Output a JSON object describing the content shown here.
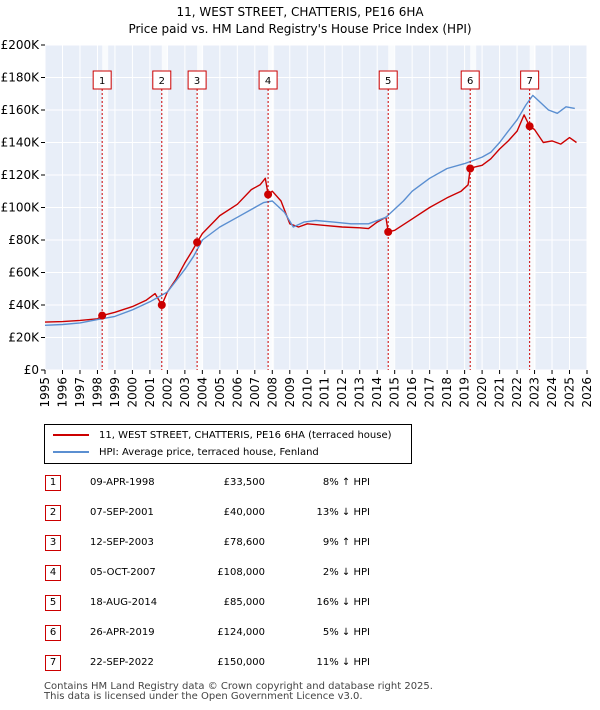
{
  "chart_data": {
    "type": "line",
    "title": "11, WEST STREET, CHATTERIS, PE16 6HA",
    "subtitle": "Price paid vs. HM Land Registry's House Price Index (HPI)",
    "xlim": [
      1995,
      2026
    ],
    "ylim": [
      0,
      200000
    ],
    "x_ticks": [
      "1995",
      "1996",
      "1997",
      "1998",
      "1999",
      "2000",
      "2001",
      "2002",
      "2003",
      "2004",
      "2005",
      "2006",
      "2007",
      "2008",
      "2009",
      "2010",
      "2011",
      "2012",
      "2013",
      "2014",
      "2015",
      "2016",
      "2017",
      "2018",
      "2019",
      "2020",
      "2021",
      "2022",
      "2023",
      "2024",
      "2025",
      "2026"
    ],
    "y_ticks": [
      {
        "value": 0,
        "label": "£0"
      },
      {
        "value": 20000,
        "label": "£20K"
      },
      {
        "value": 40000,
        "label": "£40K"
      },
      {
        "value": 60000,
        "label": "£60K"
      },
      {
        "value": 80000,
        "label": "£80K"
      },
      {
        "value": 100000,
        "label": "£100K"
      },
      {
        "value": 120000,
        "label": "£120K"
      },
      {
        "value": 140000,
        "label": "£140K"
      },
      {
        "value": 160000,
        "label": "£160K"
      },
      {
        "value": 180000,
        "label": "£180K"
      },
      {
        "value": 200000,
        "label": "£200K"
      }
    ],
    "grid": true,
    "series": [
      {
        "name": "11, WEST STREET, CHATTERIS, PE16 6HA (terraced house)",
        "color": "#cc0000",
        "points": [
          [
            1995.0,
            29500
          ],
          [
            1996.0,
            29800
          ],
          [
            1997.0,
            30500
          ],
          [
            1998.0,
            31500
          ],
          [
            1998.27,
            33500
          ],
          [
            1999.0,
            35500
          ],
          [
            2000.0,
            39000
          ],
          [
            2000.8,
            43000
          ],
          [
            2001.3,
            47000
          ],
          [
            2001.68,
            40000
          ],
          [
            2002.0,
            48000
          ],
          [
            2002.5,
            56000
          ],
          [
            2003.0,
            66000
          ],
          [
            2003.4,
            73000
          ],
          [
            2003.7,
            78600
          ],
          [
            2004.0,
            84000
          ],
          [
            2005.0,
            95000
          ],
          [
            2006.0,
            102000
          ],
          [
            2006.8,
            111000
          ],
          [
            2007.3,
            114000
          ],
          [
            2007.6,
            118000
          ],
          [
            2007.76,
            108000
          ],
          [
            2008.0,
            110000
          ],
          [
            2008.5,
            104000
          ],
          [
            2009.0,
            90000
          ],
          [
            2009.5,
            88000
          ],
          [
            2010.0,
            90000
          ],
          [
            2011.0,
            89000
          ],
          [
            2012.0,
            88000
          ],
          [
            2013.0,
            87500
          ],
          [
            2013.5,
            87000
          ],
          [
            2014.0,
            91000
          ],
          [
            2014.5,
            94000
          ],
          [
            2014.63,
            85000
          ],
          [
            2015.0,
            86000
          ],
          [
            2016.0,
            93000
          ],
          [
            2017.0,
            100000
          ],
          [
            2018.0,
            106000
          ],
          [
            2018.8,
            110000
          ],
          [
            2019.2,
            114000
          ],
          [
            2019.32,
            124000
          ],
          [
            2019.6,
            125000
          ],
          [
            2020.0,
            126000
          ],
          [
            2020.5,
            130000
          ],
          [
            2021.0,
            136000
          ],
          [
            2021.5,
            141000
          ],
          [
            2022.0,
            147000
          ],
          [
            2022.4,
            157000
          ],
          [
            2022.72,
            150000
          ],
          [
            2023.0,
            148000
          ],
          [
            2023.5,
            140000
          ],
          [
            2024.0,
            141000
          ],
          [
            2024.5,
            139000
          ],
          [
            2025.0,
            143000
          ],
          [
            2025.4,
            140000
          ]
        ]
      },
      {
        "name": "HPI: Average price, terraced house, Fenland",
        "color": "#5b8fd1",
        "points": [
          [
            1995.0,
            27500
          ],
          [
            1996.0,
            28000
          ],
          [
            1997.0,
            29000
          ],
          [
            1998.0,
            31000
          ],
          [
            1999.0,
            33000
          ],
          [
            2000.0,
            37000
          ],
          [
            2001.0,
            42000
          ],
          [
            2002.0,
            48000
          ],
          [
            2003.0,
            62000
          ],
          [
            2003.5,
            70000
          ],
          [
            2004.0,
            80000
          ],
          [
            2005.0,
            88000
          ],
          [
            2006.0,
            94000
          ],
          [
            2007.0,
            100000
          ],
          [
            2007.5,
            103000
          ],
          [
            2008.0,
            104000
          ],
          [
            2008.7,
            97000
          ],
          [
            2009.2,
            88000
          ],
          [
            2009.8,
            91000
          ],
          [
            2010.5,
            92000
          ],
          [
            2011.5,
            91000
          ],
          [
            2012.5,
            90000
          ],
          [
            2013.5,
            90000
          ],
          [
            2014.5,
            94000
          ],
          [
            2015.0,
            99000
          ],
          [
            2015.5,
            104000
          ],
          [
            2016.0,
            110000
          ],
          [
            2017.0,
            118000
          ],
          [
            2018.0,
            124000
          ],
          [
            2019.0,
            127000
          ],
          [
            2019.5,
            129000
          ],
          [
            2020.0,
            131000
          ],
          [
            2020.5,
            134000
          ],
          [
            2021.0,
            140000
          ],
          [
            2021.5,
            147000
          ],
          [
            2022.0,
            154000
          ],
          [
            2022.5,
            163000
          ],
          [
            2022.9,
            169000
          ],
          [
            2023.3,
            165000
          ],
          [
            2023.8,
            160000
          ],
          [
            2024.3,
            158000
          ],
          [
            2024.8,
            162000
          ],
          [
            2025.3,
            161000
          ]
        ]
      }
    ],
    "sales": [
      {
        "n": "1",
        "x": 1998.27,
        "y": 33500
      },
      {
        "n": "2",
        "x": 2001.68,
        "y": 40000
      },
      {
        "n": "3",
        "x": 2003.7,
        "y": 78600
      },
      {
        "n": "4",
        "x": 2007.76,
        "y": 108000
      },
      {
        "n": "5",
        "x": 2014.63,
        "y": 85000
      },
      {
        "n": "6",
        "x": 2019.32,
        "y": 124000
      },
      {
        "n": "7",
        "x": 2022.72,
        "y": 150000
      }
    ]
  },
  "legend": {
    "property_label": "11, WEST STREET, CHATTERIS, PE16 6HA (terraced house)",
    "hpi_label": "HPI: Average price, terraced house, Fenland",
    "property_color": "#cc0000",
    "hpi_color": "#5b8fd1"
  },
  "sales_table": [
    {
      "n": "1",
      "date": "09-APR-1998",
      "price": "£33,500",
      "diff": "8% ↑ HPI"
    },
    {
      "n": "2",
      "date": "07-SEP-2001",
      "price": "£40,000",
      "diff": "13% ↓ HPI"
    },
    {
      "n": "3",
      "date": "12-SEP-2003",
      "price": "£78,600",
      "diff": "9% ↑ HPI"
    },
    {
      "n": "4",
      "date": "05-OCT-2007",
      "price": "£108,000",
      "diff": "2% ↓ HPI"
    },
    {
      "n": "5",
      "date": "18-AUG-2014",
      "price": "£85,000",
      "diff": "16% ↓ HPI"
    },
    {
      "n": "6",
      "date": "26-APR-2019",
      "price": "£124,000",
      "diff": "5% ↓ HPI"
    },
    {
      "n": "7",
      "date": "22-SEP-2022",
      "price": "£150,000",
      "diff": "11% ↓ HPI"
    }
  ],
  "footer": {
    "line1": "Contains HM Land Registry data © Crown copyright and database right 2025.",
    "line2": "This data is licensed under the Open Government Licence v3.0."
  }
}
